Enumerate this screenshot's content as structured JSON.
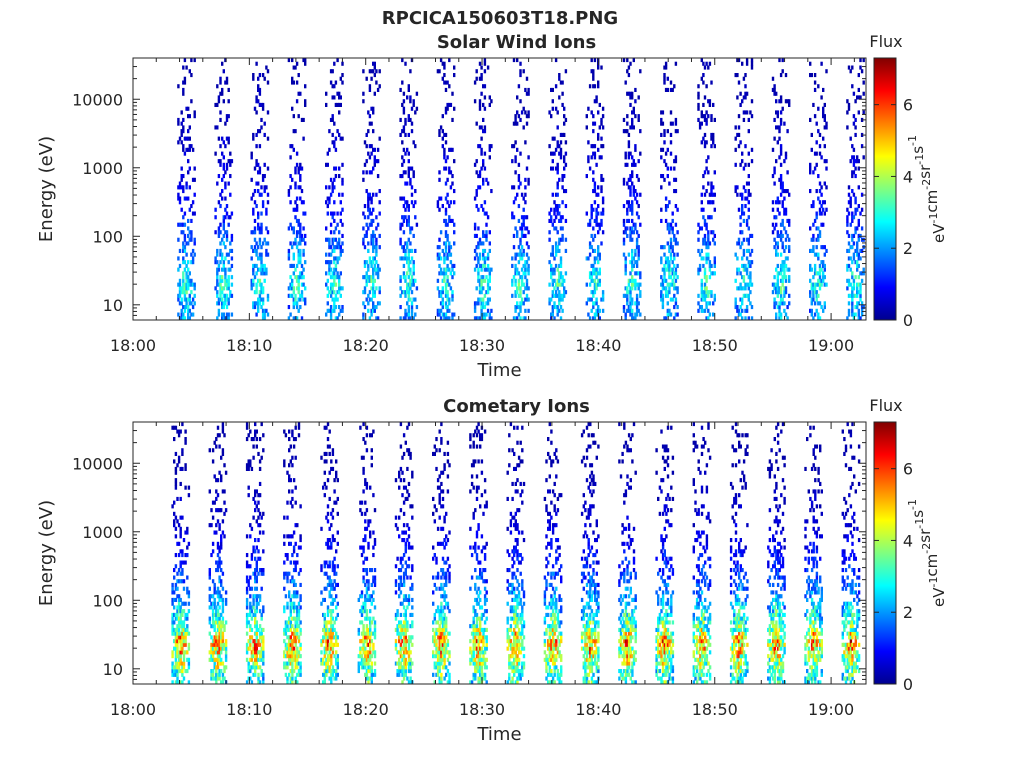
{
  "figure": {
    "title": "RPCICA150603T18.PNG"
  },
  "chart_data": [
    {
      "type": "heatmap",
      "title": "Solar Wind Ions",
      "xlabel": "Time",
      "ylabel": "Energy (eV)",
      "x_ticks": [
        "18:00",
        "18:10",
        "18:20",
        "18:30",
        "18:40",
        "18:50",
        "19:00"
      ],
      "x_range": [
        "18:00",
        "19:03"
      ],
      "y_scale": "log",
      "y_ticks": [
        10,
        100,
        1000,
        10000
      ],
      "y_tick_labels": [
        "10",
        "100",
        "1000",
        "10000"
      ],
      "y_range": [
        6,
        40000
      ],
      "colorbar": {
        "label": "Flux",
        "unit": "eV-1cm-2sr-1s-1",
        "ticks": [
          0,
          2,
          4,
          6
        ],
        "range": [
          0,
          7.3
        ],
        "colormap": "jet"
      },
      "sweep_times": [
        "18:04.5",
        "18:07.7",
        "18:10.8",
        "18:14.0",
        "18:17.2",
        "18:20.4",
        "18:23.6",
        "18:26.8",
        "18:30.0",
        "18:33.2",
        "18:36.4",
        "18:39.6",
        "18:42.8",
        "18:46.0",
        "18:49.2",
        "18:52.4",
        "18:55.6",
        "18:58.8",
        "19:02.0"
      ],
      "typical_flux_by_energy": {
        "energies_eV": [
          8,
          20,
          40,
          100,
          300,
          1000,
          3000,
          10000,
          30000
        ],
        "flux": [
          2.6,
          3.6,
          3.0,
          1.9,
          1.2,
          0.8,
          0.6,
          0.5,
          0.4
        ]
      }
    },
    {
      "type": "heatmap",
      "title": "Cometary Ions",
      "xlabel": "Time",
      "ylabel": "Energy (eV)",
      "x_ticks": [
        "18:00",
        "18:10",
        "18:20",
        "18:30",
        "18:40",
        "18:50",
        "19:00"
      ],
      "x_range": [
        "18:00",
        "19:03"
      ],
      "y_scale": "log",
      "y_ticks": [
        10,
        100,
        1000,
        10000
      ],
      "y_tick_labels": [
        "10",
        "100",
        "1000",
        "10000"
      ],
      "y_range": [
        6,
        40000
      ],
      "colorbar": {
        "label": "Flux",
        "unit": "eV-1cm-2sr-1s-1",
        "ticks": [
          0,
          2,
          4,
          6
        ],
        "range": [
          0,
          7.3
        ],
        "colormap": "jet"
      },
      "sweep_times": [
        "18:04.0",
        "18:07.2",
        "18:10.4",
        "18:13.6",
        "18:16.8",
        "18:20.0",
        "18:23.2",
        "18:26.4",
        "18:29.6",
        "18:32.8",
        "18:36.0",
        "18:39.2",
        "18:42.4",
        "18:45.6",
        "18:48.8",
        "18:52.0",
        "18:55.2",
        "18:58.4",
        "19:01.6"
      ],
      "typical_flux_by_energy": {
        "energies_eV": [
          8,
          15,
          25,
          40,
          100,
          300,
          1000,
          3000,
          10000
        ],
        "flux": [
          4.0,
          5.5,
          6.5,
          4.5,
          2.8,
          1.6,
          0.9,
          0.6,
          0.4
        ]
      }
    }
  ]
}
